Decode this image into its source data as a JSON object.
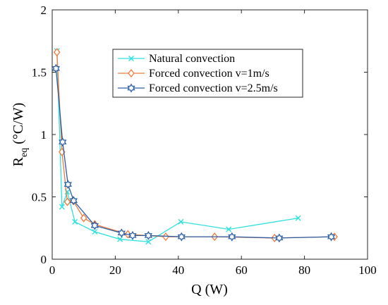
{
  "chart_data": {
    "type": "line",
    "xlabel": "Q (W)",
    "ylabel": {
      "main": "R",
      "sub": "eq",
      "unit": " (°C/W)"
    },
    "xlim": [
      0,
      100
    ],
    "ylim": [
      0,
      2
    ],
    "xticks": [
      0,
      20,
      40,
      60,
      80,
      100
    ],
    "yticks": [
      0,
      0.5,
      1,
      1.5,
      2
    ],
    "xtick_labels": [
      "0",
      "20",
      "40",
      "60",
      "80",
      "100"
    ],
    "ytick_labels": [
      "0",
      "0.5",
      "1",
      "1.5",
      "2"
    ],
    "grid": false,
    "legend_position": "top-right",
    "series": [
      {
        "name": "Natural convection",
        "color": "#2fe0e0",
        "marker": "x",
        "points": [
          [
            1.5,
            1.67
          ],
          [
            3.1,
            0.42
          ],
          [
            4.8,
            0.54
          ],
          [
            7.2,
            0.3
          ],
          [
            13.5,
            0.22
          ],
          [
            21.5,
            0.16
          ],
          [
            30.5,
            0.14
          ],
          [
            40.8,
            0.3
          ],
          [
            56.0,
            0.24
          ],
          [
            78.0,
            0.33
          ]
        ]
      },
      {
        "name": "Forced convection v=1m/s",
        "color": "#f07a3a",
        "marker": "diamond",
        "points": [
          [
            1.5,
            1.66
          ],
          [
            3.1,
            0.86
          ],
          [
            4.8,
            0.46
          ],
          [
            6.6,
            0.47
          ],
          [
            10.0,
            0.33
          ],
          [
            13.5,
            0.28
          ],
          [
            24.0,
            0.2
          ],
          [
            36.0,
            0.18
          ],
          [
            51.5,
            0.18
          ],
          [
            70.5,
            0.17
          ],
          [
            89.5,
            0.18
          ]
        ]
      },
      {
        "name": "Forced convection v=2.5m/s",
        "color": "#2a5fa8",
        "marker": "hexagram",
        "points": [
          [
            1.2,
            1.53
          ],
          [
            3.3,
            0.94
          ],
          [
            5.0,
            0.6
          ],
          [
            6.8,
            0.47
          ],
          [
            13.5,
            0.27
          ],
          [
            22.0,
            0.21
          ],
          [
            25.5,
            0.19
          ],
          [
            30.5,
            0.19
          ],
          [
            41.0,
            0.18
          ],
          [
            57.0,
            0.18
          ],
          [
            72.0,
            0.17
          ],
          [
            88.5,
            0.18
          ]
        ]
      }
    ]
  }
}
